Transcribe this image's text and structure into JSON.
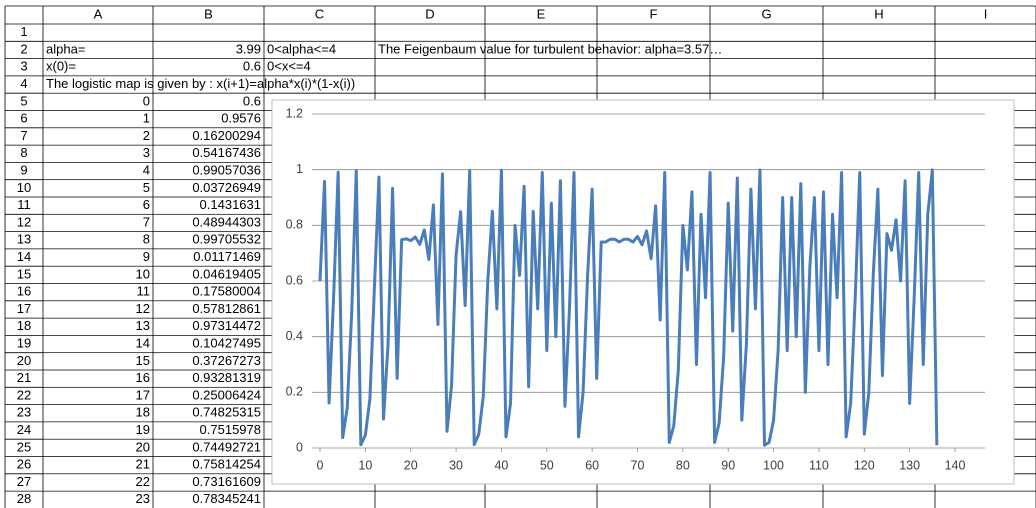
{
  "table": {
    "columns": [
      "A",
      "B",
      "C",
      "D",
      "E",
      "F",
      "G",
      "H",
      "I"
    ],
    "rows": [
      {
        "number": 1
      },
      {
        "number": 2,
        "A": "alpha=",
        "B": 3.99,
        "C": "0<alpha<=4",
        "D": "The Feigenbaum value for turbulent behavior: alpha=3.57…"
      },
      {
        "number": 3,
        "A": "x(0)=",
        "B": 0.6,
        "C": "0<x<=4"
      },
      {
        "number": 4,
        "A": "The logistic map is given by : x(i+1)=alpha*x(i)*(1-x(i))"
      },
      {
        "number": 5,
        "A": 0,
        "B": 0.6
      },
      {
        "number": 6,
        "A": 1,
        "B": 0.9576
      },
      {
        "number": 7,
        "A": 2,
        "B": 0.16200294
      },
      {
        "number": 8,
        "A": 3,
        "B": 0.54167436
      },
      {
        "number": 9,
        "A": 4,
        "B": 0.99057036
      },
      {
        "number": 10,
        "A": 5,
        "B": 0.03726949
      },
      {
        "number": 11,
        "A": 6,
        "B": 0.1431631
      },
      {
        "number": 12,
        "A": 7,
        "B": 0.48944303
      },
      {
        "number": 13,
        "A": 8,
        "B": 0.99705532
      },
      {
        "number": 14,
        "A": 9,
        "B": 0.01171469
      },
      {
        "number": 15,
        "A": 10,
        "B": 0.04619405
      },
      {
        "number": 16,
        "A": 11,
        "B": 0.17580004
      },
      {
        "number": 17,
        "A": 12,
        "B": 0.57812861
      },
      {
        "number": 18,
        "A": 13,
        "B": 0.97314472
      },
      {
        "number": 19,
        "A": 14,
        "B": 0.10427495
      },
      {
        "number": 20,
        "A": 15,
        "B": 0.37267273
      },
      {
        "number": 21,
        "A": 16,
        "B": 0.93281319
      },
      {
        "number": 22,
        "A": 17,
        "B": 0.25006424
      },
      {
        "number": 23,
        "A": 18,
        "B": 0.74825315
      },
      {
        "number": 24,
        "A": 19,
        "B": 0.7515978
      },
      {
        "number": 25,
        "A": 20,
        "B": 0.74492721
      },
      {
        "number": 26,
        "A": 21,
        "B": 0.75814254
      },
      {
        "number": 27,
        "A": 22,
        "B": 0.73161609
      },
      {
        "number": 28,
        "A": 23,
        "B": 0.78345241
      }
    ]
  },
  "chart_data": {
    "type": "line",
    "color": "#4a7ebb",
    "grid": true,
    "x": [
      0,
      1,
      2,
      3,
      4,
      5,
      6,
      7,
      8,
      9,
      10,
      11,
      12,
      13,
      14,
      15,
      16,
      17,
      18,
      19,
      20,
      21,
      22,
      23,
      24,
      25,
      26,
      27,
      28,
      29,
      30,
      31,
      32,
      33,
      34,
      35,
      36,
      37,
      38,
      39,
      40,
      41,
      42,
      43,
      44,
      45,
      46,
      47,
      48,
      49,
      50,
      51,
      52,
      53,
      54,
      55,
      56,
      57,
      58,
      59,
      60,
      61,
      62,
      63,
      64,
      65,
      66,
      67,
      68,
      69,
      70,
      71,
      72,
      73,
      74,
      75,
      76,
      77,
      78,
      79,
      80,
      81,
      82,
      83,
      84,
      85,
      86,
      87,
      88,
      89,
      90,
      91,
      92,
      93,
      94,
      95,
      96,
      97,
      98,
      99,
      100,
      101,
      102,
      103,
      104,
      105,
      106,
      107,
      108,
      109,
      110,
      111,
      112,
      113,
      114,
      115,
      116,
      117,
      118,
      119,
      120,
      121,
      122,
      123,
      124,
      125,
      126,
      127,
      128,
      129,
      130,
      131,
      132,
      133,
      134,
      135,
      136
    ],
    "values": [
      0.6,
      0.9576,
      0.16200294,
      0.54167436,
      0.99057036,
      0.03726949,
      0.1431631,
      0.48944303,
      0.99705532,
      0.01171469,
      0.04619405,
      0.17580004,
      0.57812861,
      0.97314472,
      0.10427495,
      0.37267273,
      0.93281319,
      0.25006424,
      0.74825315,
      0.7515978,
      0.74492721,
      0.75814254,
      0.73161609,
      0.78345241,
      0.677,
      0.873,
      0.444,
      0.985,
      0.06,
      0.224,
      0.693,
      0.849,
      0.512,
      0.997,
      0.012,
      0.049,
      0.186,
      0.603,
      0.85,
      0.5,
      0.998,
      0.04,
      0.16,
      0.8,
      0.62,
      0.94,
      0.22,
      0.85,
      0.5,
      0.99,
      0.35,
      0.88,
      0.4,
      0.96,
      0.15,
      0.5,
      0.99,
      0.04,
      0.2,
      0.62,
      0.93,
      0.25,
      0.74,
      0.74,
      0.75,
      0.75,
      0.74,
      0.75,
      0.75,
      0.74,
      0.76,
      0.73,
      0.78,
      0.68,
      0.87,
      0.46,
      0.99,
      0.02,
      0.08,
      0.28,
      0.8,
      0.64,
      0.92,
      0.3,
      0.84,
      0.54,
      0.99,
      0.02,
      0.09,
      0.33,
      0.88,
      0.42,
      0.97,
      0.1,
      0.37,
      0.93,
      0.5,
      0.999,
      0.01,
      0.02,
      0.1,
      0.35,
      0.9,
      0.35,
      0.9,
      0.4,
      0.95,
      0.2,
      0.65,
      0.9,
      0.35,
      0.92,
      0.3,
      0.84,
      0.54,
      0.99,
      0.04,
      0.16,
      0.54,
      0.99,
      0.05,
      0.2,
      0.63,
      0.93,
      0.26,
      0.77,
      0.71,
      0.82,
      0.6,
      0.96,
      0.16,
      0.54,
      0.99,
      0.3,
      0.84,
      0.999,
      0.01
    ],
    "xlim": [
      0,
      140
    ],
    "xticks": [
      0,
      10,
      20,
      30,
      40,
      50,
      60,
      70,
      80,
      90,
      100,
      110,
      120,
      130,
      140
    ],
    "ylim": [
      0,
      1.2
    ],
    "yticks": [
      0,
      0.2,
      0.4,
      0.6,
      0.8,
      1,
      1.2
    ]
  }
}
